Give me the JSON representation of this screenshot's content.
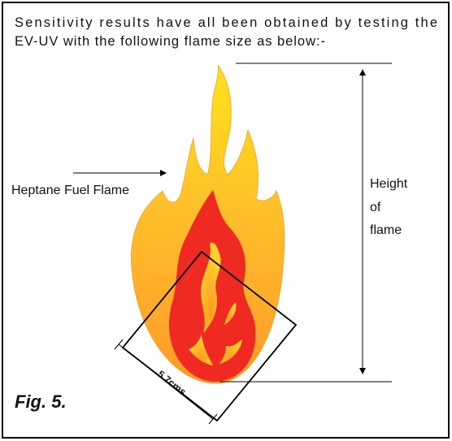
{
  "intro_lines": [
    "Sensitivity results have all been obtained by testing the",
    "EV-UV with the following flame size as below:-"
  ],
  "fuel_label": "Heptane Fuel Flame",
  "height_label": [
    "Height",
    "of",
    "flame"
  ],
  "width_label": "5.7cms",
  "figure_label": "Fig. 5."
}
